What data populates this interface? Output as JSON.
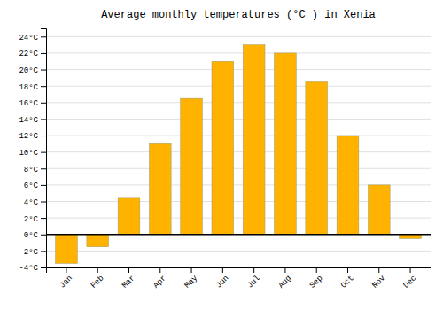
{
  "chart_data": {
    "type": "bar",
    "title": "Average monthly temperatures (°C ) in Xenia",
    "categories": [
      "Jan",
      "Feb",
      "Mar",
      "Apr",
      "May",
      "Jun",
      "Jul",
      "Aug",
      "Sep",
      "Oct",
      "Nov",
      "Dec"
    ],
    "values": [
      -3.5,
      -1.5,
      4.5,
      11.0,
      16.5,
      21.0,
      23.0,
      22.0,
      18.5,
      12.0,
      6.0,
      -0.5
    ],
    "color": "#FFB300",
    "ylim": [
      -4,
      25
    ],
    "yticks": [
      {
        "value": -4,
        "label": "-4°C"
      },
      {
        "value": -2,
        "label": "-2°C"
      },
      {
        "value": 0,
        "label": "0°C"
      },
      {
        "value": 2,
        "label": "2°C"
      },
      {
        "value": 4,
        "label": "4°C"
      },
      {
        "value": 6,
        "label": "6°C"
      },
      {
        "value": 8,
        "label": "8°C"
      },
      {
        "value": 10,
        "label": "10°C"
      },
      {
        "value": 12,
        "label": "12°C"
      },
      {
        "value": 14,
        "label": "14°C"
      },
      {
        "value": 16,
        "label": "16°C"
      },
      {
        "value": 18,
        "label": "18°C"
      },
      {
        "value": 20,
        "label": "20°C"
      },
      {
        "value": 22,
        "label": "22°C"
      },
      {
        "value": 24,
        "label": "24°C"
      }
    ],
    "grid": true
  }
}
